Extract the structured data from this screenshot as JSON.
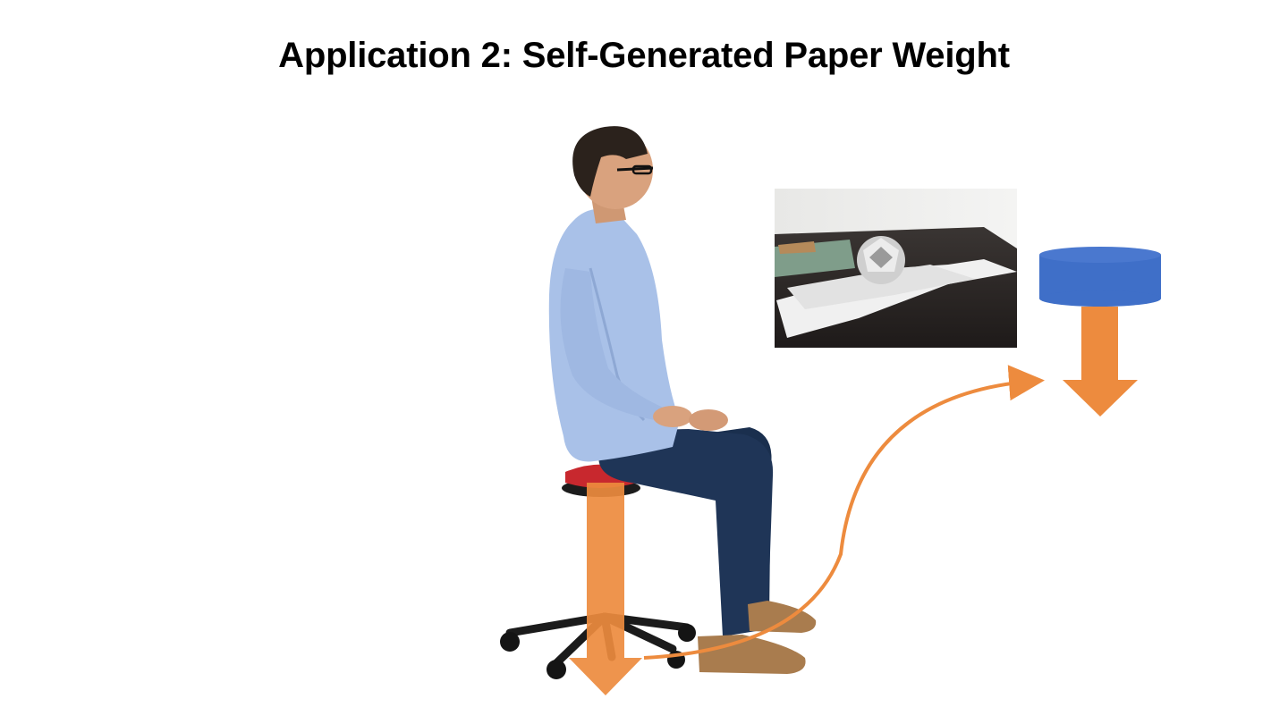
{
  "slide": {
    "title": "Application 2: Self-Generated Paper Weight"
  },
  "colors": {
    "arrow": "#ED8B3E",
    "weight_top": "#4A78CF",
    "weight_body": "#3F6FC8",
    "shirt": "#A9C1E8",
    "jeans": "#1F3557",
    "shoe": "#A97C4E",
    "hair": "#2B221C",
    "skin": "#D9A27E",
    "seat": "#C8282E",
    "desk": "#2A2624"
  },
  "icons": {
    "person": "seated-person-illustration",
    "chair": "stool-chair-illustration",
    "photo": "paperweight-photo",
    "weight": "cylinder-weight-icon",
    "arrow": "down-arrow-icon",
    "transfer": "curved-arrow-icon"
  }
}
